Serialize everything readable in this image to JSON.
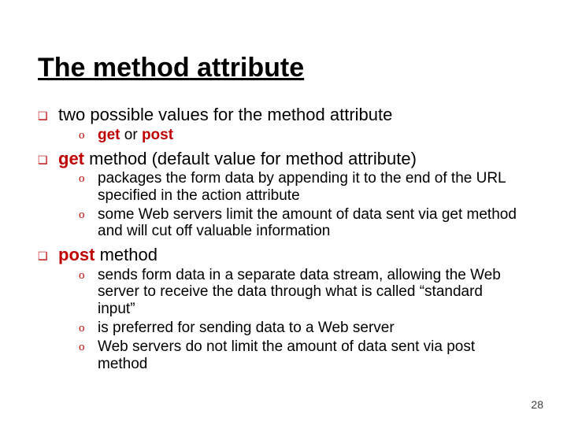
{
  "title": {
    "part1": "The ",
    "part2": "method",
    "part3": " attribute"
  },
  "bullets": {
    "b1": {
      "pre": "two possible values for the ",
      "kw": "method",
      "post": " attribute"
    },
    "b1a": {
      "kw1": "get",
      "mid": " or ",
      "kw2": "post"
    },
    "b2": {
      "kw": "get",
      "post": " method (default value for method attribute)"
    },
    "b2a": "packages the form data by appending it to the end of the URL specified in the action attribute",
    "b2b": "some Web servers limit the amount of data sent via get method and will cut off valuable information",
    "b3": {
      "kw": "post",
      "post": " method"
    },
    "b3a": "sends form data in a separate data stream, allowing the Web server to receive the data through what is called “standard input”",
    "b3b": "is preferred for sending data to a Web server",
    "b3c": "Web servers do not limit the amount of data sent via post method"
  },
  "pagenum": "28",
  "colors": {
    "accent": "#c00000",
    "text": "#000000",
    "background": "#ffffff"
  },
  "glyphs": {
    "square": "❑",
    "circle": "o"
  }
}
